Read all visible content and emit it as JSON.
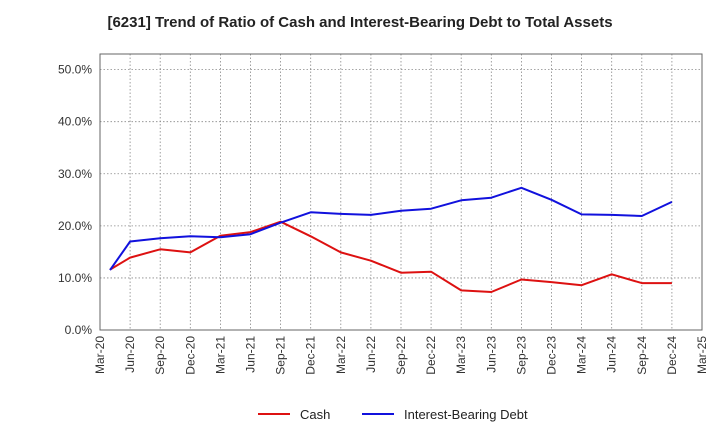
{
  "chart_data": {
    "type": "line",
    "title": "[6231]  Trend of Ratio of Cash and Interest-Bearing Debt to Total Assets",
    "x_ticks": [
      "Mar-20",
      "Jun-20",
      "Sep-20",
      "Dec-20",
      "Mar-21",
      "Jun-21",
      "Sep-21",
      "Dec-21",
      "Mar-22",
      "Jun-22",
      "Sep-22",
      "Dec-22",
      "Mar-23",
      "Jun-23",
      "Sep-23",
      "Dec-23",
      "Mar-24",
      "Jun-24",
      "Sep-24",
      "Dec-24",
      "Mar-25"
    ],
    "y_ticks": [
      "0.0%",
      "10.0%",
      "20.0%",
      "30.0%",
      "40.0%",
      "50.0%"
    ],
    "ylim": [
      0,
      53
    ],
    "grid": true,
    "legend_position": "bottom",
    "x": [
      "Jun-20",
      "Sep-20",
      "Dec-20",
      "Mar-21",
      "Jun-21",
      "Sep-21",
      "Dec-21",
      "Mar-22",
      "Jun-22",
      "Sep-22",
      "Dec-22",
      "Mar-23",
      "Jun-23",
      "Sep-23",
      "Dec-23",
      "Mar-24",
      "Jun-24",
      "Sep-24",
      "Dec-24"
    ],
    "series": [
      {
        "name": "Cash",
        "color": "#dd1111",
        "x": [
          "Apr-20",
          "Jun-20",
          "Sep-20",
          "Dec-20",
          "Mar-21",
          "Jun-21",
          "Sep-21",
          "Dec-21",
          "Mar-22",
          "Jun-22",
          "Sep-22",
          "Dec-22",
          "Mar-23",
          "Jun-23",
          "Sep-23",
          "Dec-23",
          "Mar-24",
          "Jun-24",
          "Sep-24",
          "Dec-24"
        ],
        "values": [
          11.6,
          13.9,
          15.5,
          14.9,
          18.1,
          18.8,
          20.8,
          18.0,
          14.9,
          13.3,
          11.0,
          11.2,
          7.6,
          7.3,
          9.7,
          9.2,
          8.6,
          10.7,
          9.0,
          9.0
        ]
      },
      {
        "name": "Interest-Bearing Debt",
        "color": "#1111dd",
        "x": [
          "Apr-20",
          "Jun-20",
          "Sep-20",
          "Dec-20",
          "Mar-21",
          "Jun-21",
          "Sep-21",
          "Dec-21",
          "Mar-22",
          "Jun-22",
          "Sep-22",
          "Dec-22",
          "Mar-23",
          "Jun-23",
          "Sep-23",
          "Dec-23",
          "Mar-24",
          "Jun-24",
          "Sep-24",
          "Dec-24"
        ],
        "values": [
          11.5,
          17.0,
          17.6,
          18.0,
          17.8,
          18.4,
          20.6,
          22.6,
          22.3,
          22.1,
          22.9,
          23.3,
          24.9,
          25.4,
          27.3,
          25.0,
          22.2,
          22.1,
          21.9,
          24.6
        ]
      }
    ]
  }
}
